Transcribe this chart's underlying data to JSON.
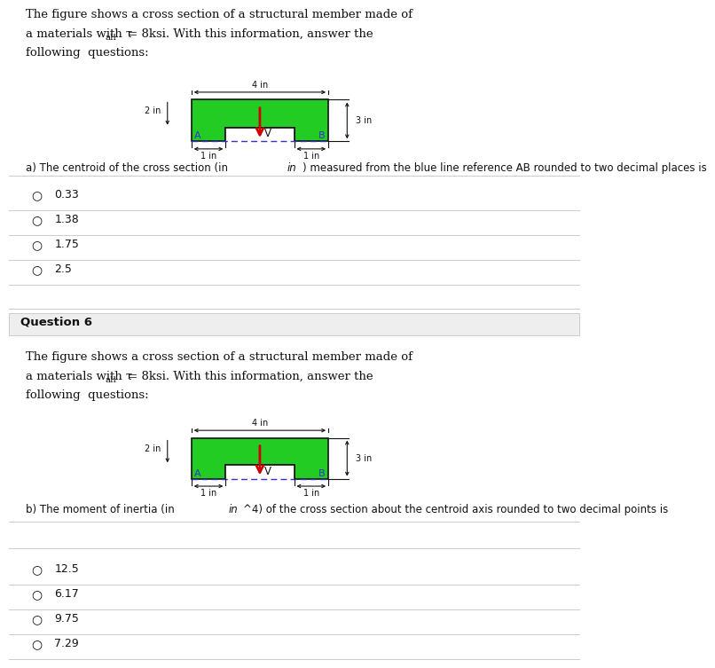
{
  "white": "#ffffff",
  "green_color": "#22cc22",
  "red_color": "#cc0000",
  "blue_color": "#3333cc",
  "black": "#111111",
  "gray_border": "#cccccc",
  "gray_bg": "#eeeeee",
  "title_line1": "The figure shows a cross section of a structural member made of",
  "title_line2a": "a materials with τ",
  "title_line2_sub": "all",
  "title_line2b": " = 8ksi. With this information, answer the",
  "title_line3": "following  questions:",
  "question_a": "a) The centroid of the cross section (in ",
  "question_a_italic": "in",
  "question_a2": ") measured from the blue line reference AB rounded to two decimal places is",
  "question_b": "b) The moment of inertia (in ",
  "question_b_italic": "in",
  "question_b2": "^4) of the cross section about the centroid axis rounded to two decimal points is",
  "question6_label": "Question 6",
  "choices_a": [
    "0.33",
    "1.38",
    "1.75",
    "2.5"
  ],
  "choices_b": [
    "12.5",
    "6.17",
    "9.75",
    "7.29"
  ],
  "fig_width_label": "4 in",
  "fig_height_label": "3 in",
  "fig_left_label": "2 in",
  "fig_1in_left": "1 in",
  "fig_1in_right": "1 in",
  "label_A": "A",
  "label_B": "B",
  "label_V": "V",
  "font_size_body": 9.5,
  "font_size_small": 8.5,
  "font_size_choices": 9,
  "font_size_fig": 7.0
}
